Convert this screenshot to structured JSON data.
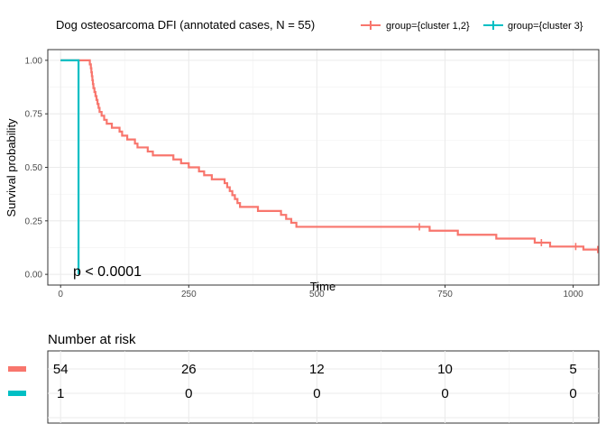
{
  "chart_data": {
    "type": "line",
    "subtype": "kaplan-meier",
    "title": "",
    "legend": {
      "title": "Dog osteosarcoma DFI (annotated cases, N = 55)",
      "placement": "top",
      "entries": [
        {
          "label": "group={cluster 1,2}",
          "color": "#F8766D"
        },
        {
          "label": "group={cluster 3}",
          "color": "#00BFC4"
        }
      ]
    },
    "xlabel": "Time",
    "ylabel": "Survival probability",
    "xlim": [
      -25,
      1050
    ],
    "ylim": [
      -0.05,
      1.05
    ],
    "xticks": [
      0,
      250,
      500,
      750,
      1000
    ],
    "yticks": [
      0.0,
      0.25,
      0.5,
      0.75,
      1.0
    ],
    "ytick_labels": [
      "0.00",
      "0.25",
      "0.50",
      "0.75",
      "1.00"
    ],
    "grid": true,
    "annotation": "p < 0.0001",
    "series": [
      {
        "name": "group={cluster 1,2}",
        "color": "#F8766D",
        "steps": [
          [
            0,
            1.0
          ],
          [
            57,
            0.981
          ],
          [
            59,
            0.963
          ],
          [
            60,
            0.944
          ],
          [
            61,
            0.926
          ],
          [
            62,
            0.907
          ],
          [
            63,
            0.889
          ],
          [
            64,
            0.87
          ],
          [
            66,
            0.852
          ],
          [
            68,
            0.833
          ],
          [
            70,
            0.815
          ],
          [
            72,
            0.796
          ],
          [
            74,
            0.778
          ],
          [
            76,
            0.759
          ],
          [
            80,
            0.741
          ],
          [
            85,
            0.722
          ],
          [
            90,
            0.704
          ],
          [
            100,
            0.685
          ],
          [
            115,
            0.667
          ],
          [
            120,
            0.648
          ],
          [
            130,
            0.63
          ],
          [
            145,
            0.611
          ],
          [
            150,
            0.593
          ],
          [
            170,
            0.574
          ],
          [
            180,
            0.556
          ],
          [
            220,
            0.537
          ],
          [
            235,
            0.519
          ],
          [
            250,
            0.5
          ],
          [
            270,
            0.481
          ],
          [
            280,
            0.463
          ],
          [
            295,
            0.444
          ],
          [
            320,
            0.426
          ],
          [
            325,
            0.407
          ],
          [
            330,
            0.389
          ],
          [
            335,
            0.37
          ],
          [
            340,
            0.352
          ],
          [
            345,
            0.333
          ],
          [
            350,
            0.315
          ],
          [
            385,
            0.296
          ],
          [
            430,
            0.278
          ],
          [
            440,
            0.259
          ],
          [
            450,
            0.241
          ],
          [
            460,
            0.222
          ],
          [
            720,
            0.204
          ],
          [
            775,
            0.185
          ],
          [
            850,
            0.167
          ],
          [
            925,
            0.148
          ],
          [
            955,
            0.13
          ],
          [
            1020,
            0.116
          ]
        ],
        "end_x": 1050,
        "censored": [
          [
            700,
            0.222
          ],
          [
            938,
            0.148
          ],
          [
            1005,
            0.13
          ],
          [
            1048,
            0.116
          ]
        ]
      },
      {
        "name": "group={cluster 3}",
        "color": "#00BFC4",
        "steps": [
          [
            0,
            1.0
          ],
          [
            35,
            0.0
          ]
        ],
        "end_x": 35,
        "censored": []
      }
    ],
    "risk_table": {
      "title": "Number at risk",
      "times": [
        0,
        250,
        500,
        750,
        1000
      ],
      "rows": [
        {
          "name": "group={cluster 1,2}",
          "color": "#F8766D",
          "counts": [
            "54",
            "26",
            "12",
            "10",
            "5"
          ]
        },
        {
          "name": "group={cluster 3}",
          "color": "#00BFC4",
          "counts": [
            "1",
            "0",
            "0",
            "0",
            "0"
          ]
        }
      ]
    }
  }
}
